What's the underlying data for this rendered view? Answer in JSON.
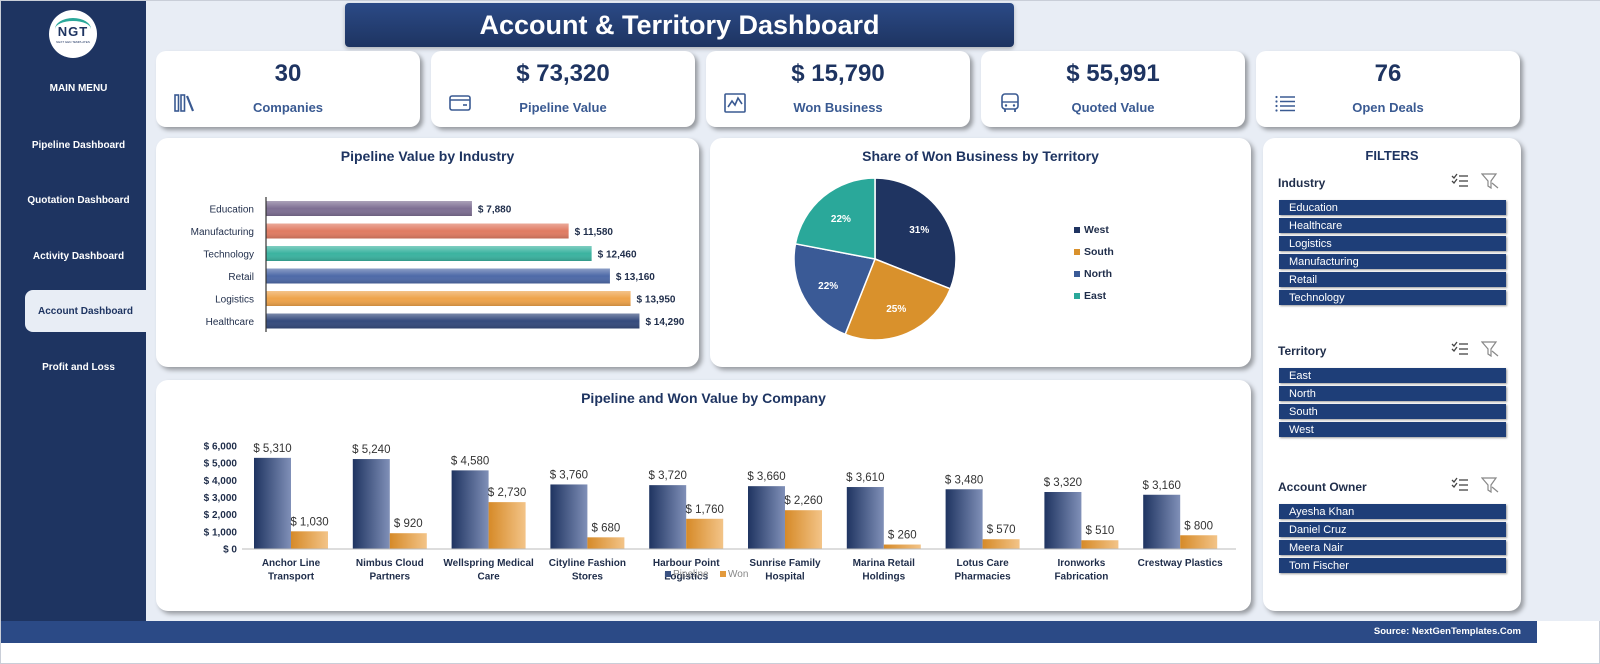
{
  "header": {
    "title": "Account & Territory Dashboard"
  },
  "logo": {
    "text": "NGT",
    "tagline": "NEXT GEN TEMPLATES"
  },
  "sidebar": {
    "menu_title": "MAIN MENU",
    "items": [
      {
        "label": "Pipeline Dashboard",
        "active": false
      },
      {
        "label": "Quotation Dashboard",
        "active": false
      },
      {
        "label": "Activity Dashboard",
        "active": false
      },
      {
        "label": "Account Dashboard",
        "active": true
      },
      {
        "label": "Profit and Loss",
        "active": false
      }
    ]
  },
  "kpis": [
    {
      "value": "30",
      "label": "Companies",
      "icon": "books-icon"
    },
    {
      "value": "$ 73,320",
      "label": "Pipeline Value",
      "icon": "wallet-icon"
    },
    {
      "value": "$ 15,790",
      "label": "Won Business",
      "icon": "line-chart-icon"
    },
    {
      "value": "$ 55,991",
      "label": "Quoted Value",
      "icon": "bus-icon"
    },
    {
      "value": "76",
      "label": "Open Deals",
      "icon": "list-icon"
    }
  ],
  "colors": {
    "navy": "#1e3461",
    "accent_blue": "#2b4a86",
    "panel_bg": "#e8edf5",
    "won_orange": "#e39a3c",
    "teal": "#2aa89a"
  },
  "chart_data": [
    {
      "type": "bar",
      "orientation": "horizontal",
      "title": "Pipeline Value by Industry",
      "categories": [
        "Education",
        "Manufacturing",
        "Technology",
        "Retail",
        "Logistics",
        "Healthcare"
      ],
      "values": [
        7880,
        11580,
        12460,
        13160,
        13950,
        14290
      ],
      "value_labels": [
        "$ 7,880",
        "$ 11,580",
        "$ 12,460",
        "$ 13,160",
        "$ 13,950",
        "$ 14,290"
      ],
      "colors": [
        "#7e6f93",
        "#e07b62",
        "#3bb3a0",
        "#4e6aa8",
        "#eea34a",
        "#344a7c"
      ],
      "xlim": [
        0,
        15000
      ]
    },
    {
      "type": "pie",
      "title": "Share of Won Business by Territory",
      "labels": [
        "West",
        "South",
        "North",
        "East"
      ],
      "values": [
        31,
        25,
        22,
        22
      ],
      "value_labels": [
        "31%",
        "25%",
        "22%",
        "22%"
      ],
      "colors": [
        "#1f3461",
        "#d9912c",
        "#3a5a96",
        "#2aa89a"
      ],
      "legend": "right"
    },
    {
      "type": "bar",
      "title": "Pipeline and Won Value by Company",
      "categories": [
        "Anchor Line Transport",
        "Nimbus Cloud Partners",
        "Wellspring Medical Care",
        "Cityline Fashion Stores",
        "Harbour Point Logistics",
        "Sunrise Family Hospital",
        "Marina Retail Holdings",
        "Lotus Care Pharmacies",
        "Ironworks Fabrication",
        "Crestway Plastics"
      ],
      "category_lines": [
        [
          "Anchor Line",
          "Transport"
        ],
        [
          "Nimbus Cloud",
          "Partners"
        ],
        [
          "Wellspring Medical",
          "Care"
        ],
        [
          "Cityline Fashion",
          "Stores"
        ],
        [
          "Harbour Point",
          "Logistics"
        ],
        [
          "Sunrise Family",
          "Hospital"
        ],
        [
          "Marina Retail",
          "Holdings"
        ],
        [
          "Lotus Care",
          "Pharmacies"
        ],
        [
          "Ironworks",
          "Fabrication"
        ],
        [
          "Crestway Plastics",
          ""
        ]
      ],
      "series": [
        {
          "name": "Pipeline",
          "values": [
            5310,
            5240,
            4580,
            3760,
            3720,
            3660,
            3610,
            3480,
            3320,
            3160
          ],
          "value_labels": [
            "$ 5,310",
            "$ 5,240",
            "$ 4,580",
            "$ 3,760",
            "$ 3,720",
            "$ 3,660",
            "$ 3,610",
            "$ 3,480",
            "$ 3,320",
            "$ 3,160"
          ],
          "color": "#3a5282"
        },
        {
          "name": "Won",
          "values": [
            1030,
            920,
            2730,
            680,
            1760,
            2260,
            260,
            570,
            510,
            800
          ],
          "value_labels": [
            "$ 1,030",
            "$ 920",
            "$ 2,730",
            "$ 680",
            "$ 1,760",
            "$ 2,260",
            "$ 260",
            "$ 570",
            "$ 510",
            "$ 800"
          ],
          "color": "#e39a3c"
        }
      ],
      "ylim": [
        0,
        6000
      ],
      "yticks": [
        0,
        1000,
        2000,
        3000,
        4000,
        5000,
        6000
      ],
      "ytick_labels": [
        "$ 0",
        "$ 1,000",
        "$ 2,000",
        "$ 3,000",
        "$ 4,000",
        "$ 5,000",
        "$ 6,000"
      ],
      "legend": "bottom",
      "grid": false
    }
  ],
  "filters": {
    "title": "FILTERS",
    "groups": [
      {
        "label": "Industry",
        "items": [
          "Education",
          "Healthcare",
          "Logistics",
          "Manufacturing",
          "Retail",
          "Technology"
        ]
      },
      {
        "label": "Territory",
        "items": [
          "East",
          "North",
          "South",
          "West"
        ]
      },
      {
        "label": "Account Owner",
        "items": [
          "Ayesha Khan",
          "Daniel Cruz",
          "Meera Nair",
          "Tom Fischer"
        ]
      }
    ]
  },
  "footer": {
    "source": "Source: NextGenTemplates.Com"
  }
}
